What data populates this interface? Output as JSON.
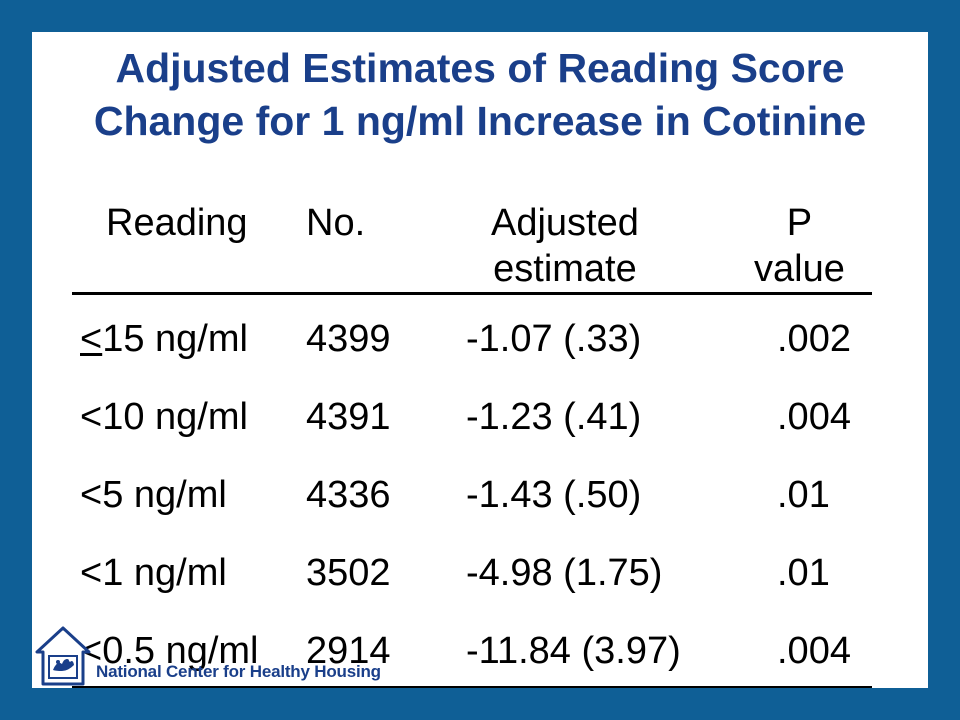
{
  "title": {
    "line1": "Adjusted Estimates of Reading Score",
    "line2": "Change for 1 ng/ml Increase in Cotinine"
  },
  "table": {
    "headers": {
      "reading": "Reading",
      "no": "No.",
      "estimate_line1": "Adjusted",
      "estimate_line2": "estimate",
      "p_line1": "P",
      "p_line2": "value"
    },
    "rows": [
      {
        "reading_symbol": "<",
        "reading_rest": "15 ng/ml",
        "no": "4399",
        "estimate": "-1.07 (.33)",
        "p": ".002"
      },
      {
        "reading": "<10 ng/ml",
        "no": "4391",
        "estimate": "-1.23 (.41)",
        "p": ".004"
      },
      {
        "reading": "<5 ng/ml",
        "no": "4336",
        "estimate": "-1.43 (.50)",
        "p": ".01"
      },
      {
        "reading": "<1 ng/ml",
        "no": "3502",
        "estimate": "-4.98 (1.75)",
        "p": ".01"
      },
      {
        "reading": "<0.5 ng/ml",
        "no": "2914",
        "estimate": "-11.84 (3.97)",
        "p": ".004"
      }
    ]
  },
  "logo": {
    "text": "National Center for Healthy Housing",
    "icon": "house-with-hands-icon"
  },
  "colors": {
    "frame": "#0f5f96",
    "title": "#1a3f8a",
    "background": "#ffffff"
  }
}
